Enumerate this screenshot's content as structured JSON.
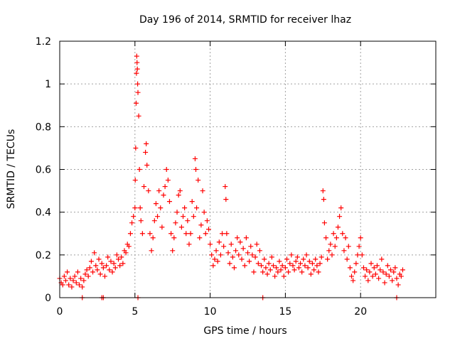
{
  "chart_data": {
    "type": "scatter",
    "title": "Day 196 of 2014, SRMTID for receiver lhaz",
    "xlabel": "GPS time / hours",
    "ylabel": "SRMTID / TECUs",
    "xlim": [
      0,
      25
    ],
    "ylim": [
      0,
      1.2
    ],
    "x_ticks": [
      0,
      5,
      10,
      15,
      20
    ],
    "x_tick_labels": [
      "0",
      "5",
      "10",
      "15",
      "20"
    ],
    "y_ticks": [
      0,
      0.2,
      0.4,
      0.6,
      0.8,
      1,
      1.2
    ],
    "y_tick_labels": [
      "0",
      "0.2",
      "0.4",
      "0.6",
      "0.8",
      "1",
      "1.2"
    ],
    "grid": true,
    "marker": "+",
    "color": "#ff0000",
    "series": [
      {
        "name": "SRMTID",
        "points": [
          [
            0.0,
            0.09
          ],
          [
            0.1,
            0.07
          ],
          [
            0.2,
            0.06
          ],
          [
            0.3,
            0.1
          ],
          [
            0.4,
            0.08
          ],
          [
            0.5,
            0.12
          ],
          [
            0.6,
            0.06
          ],
          [
            0.7,
            0.09
          ],
          [
            0.8,
            0.05
          ],
          [
            0.9,
            0.08
          ],
          [
            1.0,
            0.1
          ],
          [
            1.1,
            0.07
          ],
          [
            1.2,
            0.12
          ],
          [
            1.3,
            0.06
          ],
          [
            1.4,
            0.09
          ],
          [
            1.5,
            0.05
          ],
          [
            1.6,
            0.08
          ],
          [
            1.7,
            0.11
          ],
          [
            1.8,
            0.13
          ],
          [
            1.9,
            0.1
          ],
          [
            2.0,
            0.14
          ],
          [
            2.1,
            0.17
          ],
          [
            2.2,
            0.12
          ],
          [
            2.3,
            0.21
          ],
          [
            2.4,
            0.15
          ],
          [
            2.5,
            0.13
          ],
          [
            2.6,
            0.18
          ],
          [
            2.7,
            0.11
          ],
          [
            2.8,
            0.16
          ],
          [
            2.9,
            0.14
          ],
          [
            3.0,
            0.1
          ],
          [
            3.1,
            0.15
          ],
          [
            3.2,
            0.19
          ],
          [
            3.3,
            0.13
          ],
          [
            3.4,
            0.17
          ],
          [
            3.5,
            0.12
          ],
          [
            3.6,
            0.16
          ],
          [
            3.7,
            0.14
          ],
          [
            3.8,
            0.2
          ],
          [
            3.9,
            0.18
          ],
          [
            4.0,
            0.15
          ],
          [
            4.1,
            0.19
          ],
          [
            4.2,
            0.16
          ],
          [
            4.3,
            0.22
          ],
          [
            4.4,
            0.21
          ],
          [
            4.5,
            0.25
          ],
          [
            4.6,
            0.24
          ],
          [
            4.7,
            0.3
          ],
          [
            4.8,
            0.35
          ],
          [
            4.9,
            0.38
          ],
          [
            5.0,
            0.42
          ],
          [
            5.02,
            0.55
          ],
          [
            5.05,
            0.7
          ],
          [
            5.08,
            0.91
          ],
          [
            5.1,
            1.05
          ],
          [
            5.12,
            1.13
          ],
          [
            5.14,
            1.1
          ],
          [
            5.16,
            1.07
          ],
          [
            5.18,
            1.0
          ],
          [
            5.2,
            0.96
          ],
          [
            5.25,
            0.85
          ],
          [
            5.3,
            0.6
          ],
          [
            5.35,
            0.42
          ],
          [
            5.4,
            0.36
          ],
          [
            5.5,
            0.3
          ],
          [
            5.6,
            0.52
          ],
          [
            5.7,
            0.68
          ],
          [
            5.75,
            0.72
          ],
          [
            5.8,
            0.62
          ],
          [
            5.9,
            0.5
          ],
          [
            6.0,
            0.3
          ],
          [
            6.1,
            0.22
          ],
          [
            6.2,
            0.28
          ],
          [
            6.3,
            0.36
          ],
          [
            6.4,
            0.44
          ],
          [
            6.5,
            0.38
          ],
          [
            6.6,
            0.5
          ],
          [
            6.7,
            0.42
          ],
          [
            6.8,
            0.33
          ],
          [
            6.9,
            0.48
          ],
          [
            7.0,
            0.52
          ],
          [
            7.1,
            0.6
          ],
          [
            7.2,
            0.55
          ],
          [
            7.3,
            0.45
          ],
          [
            7.4,
            0.3
          ],
          [
            7.5,
            0.22
          ],
          [
            7.6,
            0.28
          ],
          [
            7.7,
            0.35
          ],
          [
            7.8,
            0.4
          ],
          [
            7.9,
            0.48
          ],
          [
            8.0,
            0.5
          ],
          [
            8.1,
            0.33
          ],
          [
            8.2,
            0.38
          ],
          [
            8.3,
            0.42
          ],
          [
            8.4,
            0.3
          ],
          [
            8.5,
            0.36
          ],
          [
            8.6,
            0.25
          ],
          [
            8.7,
            0.3
          ],
          [
            8.8,
            0.45
          ],
          [
            8.9,
            0.38
          ],
          [
            9.0,
            0.65
          ],
          [
            9.05,
            0.6
          ],
          [
            9.1,
            0.42
          ],
          [
            9.2,
            0.55
          ],
          [
            9.3,
            0.28
          ],
          [
            9.4,
            0.34
          ],
          [
            9.5,
            0.5
          ],
          [
            9.6,
            0.4
          ],
          [
            9.7,
            0.3
          ],
          [
            9.8,
            0.36
          ],
          [
            9.9,
            0.32
          ],
          [
            10.0,
            0.25
          ],
          [
            10.1,
            0.2
          ],
          [
            10.2,
            0.15
          ],
          [
            10.3,
            0.18
          ],
          [
            10.4,
            0.22
          ],
          [
            10.5,
            0.17
          ],
          [
            10.6,
            0.26
          ],
          [
            10.7,
            0.2
          ],
          [
            10.8,
            0.3
          ],
          [
            10.9,
            0.24
          ],
          [
            11.0,
            0.52
          ],
          [
            11.05,
            0.46
          ],
          [
            11.1,
            0.3
          ],
          [
            11.2,
            0.21
          ],
          [
            11.3,
            0.16
          ],
          [
            11.4,
            0.25
          ],
          [
            11.5,
            0.19
          ],
          [
            11.6,
            0.14
          ],
          [
            11.7,
            0.22
          ],
          [
            11.8,
            0.28
          ],
          [
            11.9,
            0.2
          ],
          [
            12.0,
            0.26
          ],
          [
            12.1,
            0.18
          ],
          [
            12.2,
            0.23
          ],
          [
            12.3,
            0.15
          ],
          [
            12.4,
            0.28
          ],
          [
            12.5,
            0.21
          ],
          [
            12.6,
            0.17
          ],
          [
            12.7,
            0.24
          ],
          [
            12.8,
            0.2
          ],
          [
            12.9,
            0.12
          ],
          [
            13.0,
            0.19
          ],
          [
            13.1,
            0.25
          ],
          [
            13.2,
            0.16
          ],
          [
            13.3,
            0.22
          ],
          [
            13.4,
            0.15
          ],
          [
            13.5,
            0.12
          ],
          [
            13.6,
            0.18
          ],
          [
            13.7,
            0.14
          ],
          [
            13.8,
            0.11
          ],
          [
            13.9,
            0.16
          ],
          [
            14.0,
            0.13
          ],
          [
            14.1,
            0.19
          ],
          [
            14.2,
            0.15
          ],
          [
            14.3,
            0.1
          ],
          [
            14.4,
            0.14
          ],
          [
            14.5,
            0.12
          ],
          [
            14.6,
            0.17
          ],
          [
            14.7,
            0.13
          ],
          [
            14.8,
            0.15
          ],
          [
            14.9,
            0.1
          ],
          [
            15.0,
            0.14
          ],
          [
            15.1,
            0.18
          ],
          [
            15.2,
            0.12
          ],
          [
            15.3,
            0.16
          ],
          [
            15.4,
            0.2
          ],
          [
            15.5,
            0.15
          ],
          [
            15.6,
            0.13
          ],
          [
            15.7,
            0.17
          ],
          [
            15.8,
            0.19
          ],
          [
            15.9,
            0.14
          ],
          [
            16.0,
            0.16
          ],
          [
            16.1,
            0.12
          ],
          [
            16.2,
            0.18
          ],
          [
            16.3,
            0.15
          ],
          [
            16.4,
            0.2
          ],
          [
            16.5,
            0.14
          ],
          [
            16.6,
            0.17
          ],
          [
            16.7,
            0.11
          ],
          [
            16.8,
            0.16
          ],
          [
            16.9,
            0.13
          ],
          [
            17.0,
            0.18
          ],
          [
            17.1,
            0.15
          ],
          [
            17.2,
            0.12
          ],
          [
            17.3,
            0.16
          ],
          [
            17.4,
            0.19
          ],
          [
            17.5,
            0.5
          ],
          [
            17.55,
            0.46
          ],
          [
            17.6,
            0.35
          ],
          [
            17.7,
            0.28
          ],
          [
            17.8,
            0.18
          ],
          [
            17.9,
            0.22
          ],
          [
            18.0,
            0.25
          ],
          [
            18.1,
            0.2
          ],
          [
            18.2,
            0.3
          ],
          [
            18.3,
            0.24
          ],
          [
            18.4,
            0.28
          ],
          [
            18.5,
            0.33
          ],
          [
            18.6,
            0.38
          ],
          [
            18.7,
            0.42
          ],
          [
            18.8,
            0.3
          ],
          [
            18.9,
            0.22
          ],
          [
            19.0,
            0.28
          ],
          [
            19.1,
            0.18
          ],
          [
            19.2,
            0.24
          ],
          [
            19.3,
            0.14
          ],
          [
            19.4,
            0.1
          ],
          [
            19.5,
            0.08
          ],
          [
            19.6,
            0.12
          ],
          [
            19.7,
            0.16
          ],
          [
            19.8,
            0.2
          ],
          [
            19.9,
            0.24
          ],
          [
            20.0,
            0.28
          ],
          [
            20.1,
            0.2
          ],
          [
            20.2,
            0.14
          ],
          [
            20.3,
            0.1
          ],
          [
            20.4,
            0.13
          ],
          [
            20.5,
            0.08
          ],
          [
            20.6,
            0.12
          ],
          [
            20.7,
            0.16
          ],
          [
            20.8,
            0.1
          ],
          [
            20.9,
            0.14
          ],
          [
            21.0,
            0.11
          ],
          [
            21.1,
            0.15
          ],
          [
            21.2,
            0.09
          ],
          [
            21.3,
            0.13
          ],
          [
            21.4,
            0.18
          ],
          [
            21.5,
            0.12
          ],
          [
            21.6,
            0.07
          ],
          [
            21.7,
            0.11
          ],
          [
            21.8,
            0.15
          ],
          [
            21.9,
            0.1
          ],
          [
            22.0,
            0.13
          ],
          [
            22.1,
            0.08
          ],
          [
            22.2,
            0.12
          ],
          [
            22.3,
            0.14
          ],
          [
            22.4,
            0.09
          ],
          [
            22.5,
            0.06
          ],
          [
            22.6,
            0.11
          ],
          [
            22.7,
            0.1
          ],
          [
            22.8,
            0.13
          ],
          [
            1.5,
            0.0
          ],
          [
            2.8,
            0.0
          ],
          [
            2.9,
            0.0
          ],
          [
            5.2,
            0.0
          ],
          [
            13.5,
            0.0
          ],
          [
            22.4,
            0.0
          ]
        ]
      }
    ]
  }
}
